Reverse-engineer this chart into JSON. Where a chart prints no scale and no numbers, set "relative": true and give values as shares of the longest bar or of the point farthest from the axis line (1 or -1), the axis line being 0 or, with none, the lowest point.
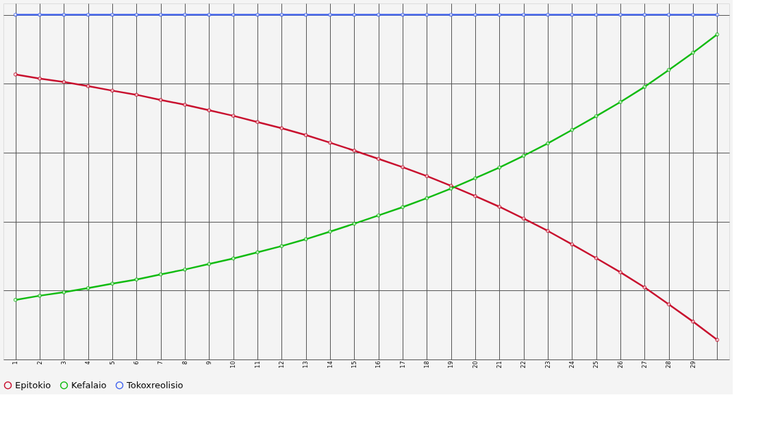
{
  "chart_data": {
    "type": "line",
    "relative": true,
    "categories": [
      "1",
      "2",
      "3",
      "4",
      "5",
      "6",
      "7",
      "8",
      "9",
      "10",
      "11",
      "12",
      "13",
      "14",
      "15",
      "16",
      "17",
      "18",
      "19",
      "20",
      "21",
      "22",
      "23",
      "24",
      "25",
      "26",
      "27",
      "28",
      "29",
      null
    ],
    "series": [
      {
        "name": "Epitokio",
        "color": "#c8102e",
        "values": [
          0.827,
          0.815,
          0.805,
          0.793,
          0.78,
          0.768,
          0.753,
          0.739,
          0.723,
          0.707,
          0.689,
          0.671,
          0.651,
          0.629,
          0.606,
          0.582,
          0.558,
          0.532,
          0.504,
          0.474,
          0.443,
          0.409,
          0.373,
          0.334,
          0.294,
          0.253,
          0.209,
          0.16,
          0.11,
          0.057
        ]
      },
      {
        "name": "Kefalaio",
        "color": "#11bb11",
        "values": [
          0.173,
          0.185,
          0.195,
          0.207,
          0.22,
          0.232,
          0.247,
          0.261,
          0.277,
          0.293,
          0.311,
          0.329,
          0.349,
          0.371,
          0.394,
          0.418,
          0.442,
          0.468,
          0.496,
          0.526,
          0.557,
          0.591,
          0.627,
          0.666,
          0.706,
          0.747,
          0.791,
          0.84,
          0.89,
          0.943
        ]
      },
      {
        "name": "Tokoxreolisio",
        "color": "#4466ee",
        "values": [
          1,
          1,
          1,
          1,
          1,
          1,
          1,
          1,
          1,
          1,
          1,
          1,
          1,
          1,
          1,
          1,
          1,
          1,
          1,
          1,
          1,
          1,
          1,
          1,
          1,
          1,
          1,
          1,
          1,
          1
        ]
      }
    ],
    "legend": "bottom",
    "grid": true,
    "marker": "circle",
    "line_style": "solid"
  }
}
